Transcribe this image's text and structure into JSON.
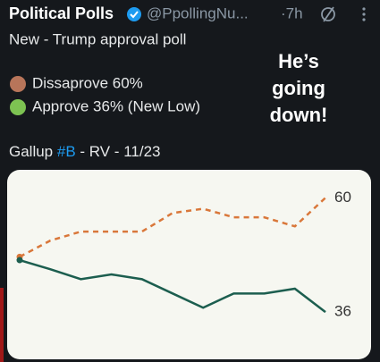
{
  "header": {
    "name": "Political Polls",
    "handle": "@PpollingNu...",
    "time": "·7h"
  },
  "body": {
    "line1": "New - Trump approval poll",
    "line2": "Dissaprove 60%",
    "line3": "Approve 36% (New Low)",
    "line4_parts": [
      "Gallup ",
      "#B",
      " - RV - 11/23"
    ]
  },
  "overlay": [
    "He’s",
    "going",
    "down!"
  ],
  "chart_data": {
    "type": "line",
    "categories": [
      null,
      null,
      null,
      null,
      null,
      null,
      null,
      null,
      null,
      null,
      null
    ],
    "series": [
      {
        "name": "Dissaprove",
        "color": "#d9773a",
        "dashed": true,
        "values": [
          47.6,
          51,
          52.9,
          52.9,
          52.9,
          56.8,
          57.7,
          55.9,
          55.9,
          54,
          60
        ]
      },
      {
        "name": "Approve",
        "color": "#1c5e4f",
        "dashed": false,
        "values": [
          46.9,
          45,
          42.9,
          43.9,
          42.9,
          39.9,
          36.9,
          39.9,
          39.9,
          40.9,
          36
        ]
      }
    ],
    "ylim": [
      27,
      64
    ]
  }
}
